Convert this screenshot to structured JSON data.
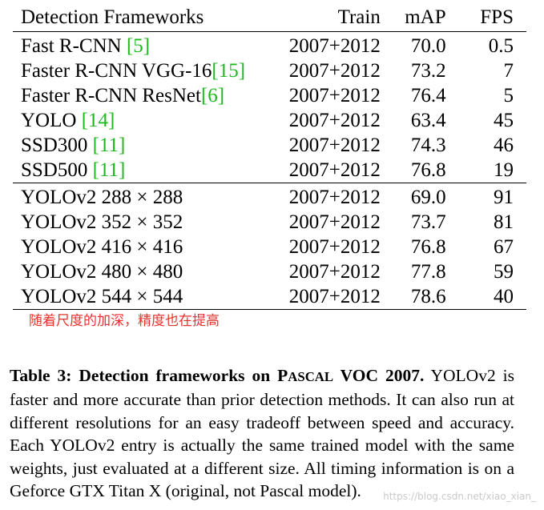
{
  "table": {
    "headers": {
      "framework": "Detection Frameworks",
      "train": "Train",
      "map": "mAP",
      "fps": "FPS"
    },
    "group1": [
      {
        "name": "Fast R-CNN ",
        "cite": "[5]",
        "train": "2007+2012",
        "map": "70.0",
        "fps": "0.5"
      },
      {
        "name": "Faster R-CNN VGG-16",
        "cite": "[15]",
        "train": "2007+2012",
        "map": "73.2",
        "fps": "7"
      },
      {
        "name": "Faster R-CNN ResNet",
        "cite": "[6]",
        "train": "2007+2012",
        "map": "76.4",
        "fps": "5"
      },
      {
        "name": "YOLO ",
        "cite": "[14]",
        "train": "2007+2012",
        "map": "63.4",
        "fps": "45"
      },
      {
        "name": "SSD300 ",
        "cite": "[11]",
        "train": "2007+2012",
        "map": "74.3",
        "fps": "46"
      },
      {
        "name": "SSD500 ",
        "cite": "[11]",
        "train": "2007+2012",
        "map": "76.8",
        "fps": "19"
      }
    ],
    "group2": [
      {
        "name": "YOLOv2 288 × 288",
        "train": "2007+2012",
        "map": "69.0",
        "fps": "91"
      },
      {
        "name": "YOLOv2 352 × 352",
        "train": "2007+2012",
        "map": "73.7",
        "fps": "81"
      },
      {
        "name": "YOLOv2 416 × 416",
        "train": "2007+2012",
        "map": "76.8",
        "fps": "67"
      },
      {
        "name": "YOLOv2 480 × 480",
        "train": "2007+2012",
        "map": "77.8",
        "fps": "59"
      },
      {
        "name": "YOLOv2 544 × 544",
        "train": "2007+2012",
        "map": "78.6",
        "fps": "40"
      }
    ]
  },
  "annotation": "随着尺度的加深，精度也在提高",
  "caption": {
    "title_prefix": "Table 3:   Detection frameworks on P",
    "title_sc": "ASCAL",
    "title_suffix": " VOC 2007.",
    "body": " YOLOv2 is faster and more accurate than prior detection methods. It can also run at different resolutions for an easy tradeoff between speed and accuracy. Each YOLOv2 entry is actually the same trained model with the same weights, just evaluated at a different size. All timing information is on a Geforce GTX Titan X (original, not Pascal model)."
  },
  "watermark": "https://blog.csdn.net/xiao_xian_",
  "colors": {
    "citation": "#1fb81f",
    "annotation": "#e8322f",
    "watermark": "#c9c9c9"
  }
}
